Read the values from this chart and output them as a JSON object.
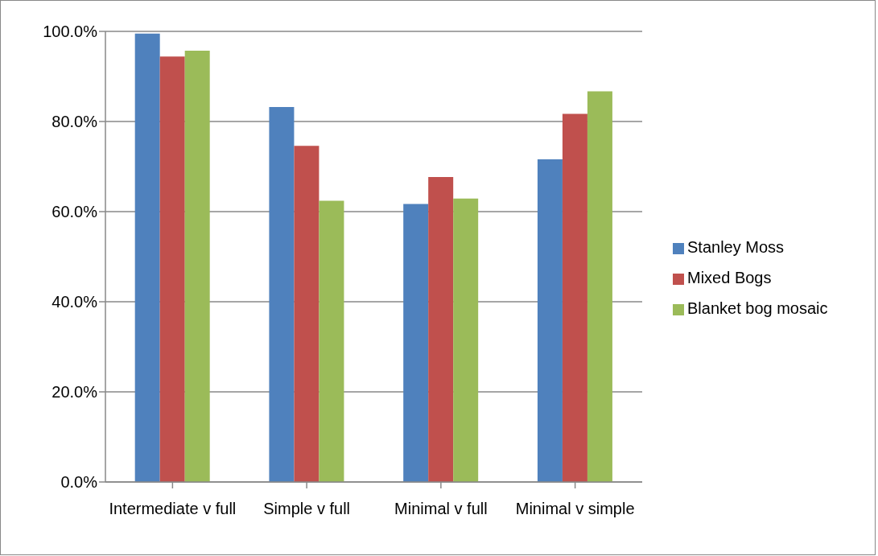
{
  "chart_data": {
    "type": "bar",
    "categories": [
      "Intermediate v full",
      "Simple v full",
      "Minimal v full",
      "Minimal v simple"
    ],
    "series": [
      {
        "name": "Stanley Moss",
        "color": "#4f81bd",
        "values": [
          99.5,
          83.2,
          61.7,
          71.6
        ]
      },
      {
        "name": "Mixed Bogs",
        "color": "#c0504d",
        "values": [
          94.4,
          74.6,
          67.7,
          81.7
        ]
      },
      {
        "name": "Blanket bog mosaic",
        "color": "#9bbb59",
        "values": [
          95.7,
          62.4,
          62.9,
          86.7
        ]
      }
    ],
    "ylim": [
      0,
      100
    ],
    "yticks": [
      {
        "value": 0,
        "label": "0.0%"
      },
      {
        "value": 20,
        "label": "20.0%"
      },
      {
        "value": 40,
        "label": "40.0%"
      },
      {
        "value": 60,
        "label": "60.0%"
      },
      {
        "value": 80,
        "label": "80.0%"
      },
      {
        "value": 100,
        "label": "100.0%"
      }
    ],
    "grid": "y",
    "legend": "right"
  }
}
